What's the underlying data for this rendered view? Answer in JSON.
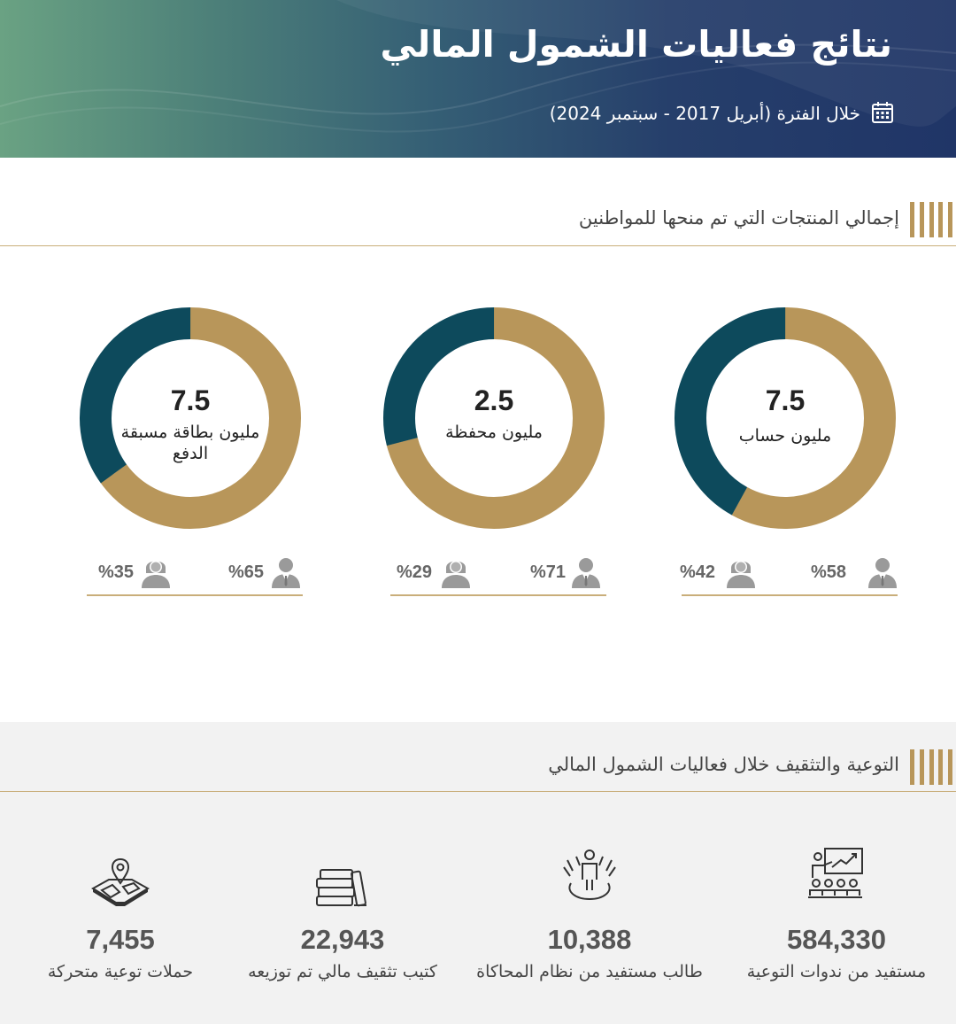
{
  "header": {
    "title": "نتائج فعاليات الشمول المالي",
    "period": "خلال الفترة (أبريل 2017 - سبتمبر 2024)",
    "icon": "calendar-icon"
  },
  "colors": {
    "gold": "#b8965a",
    "teal": "#0d4a5c",
    "rule": "#c9ae7a"
  },
  "products_section": {
    "title": "إجمالي المنتجات التي تم منحها للمواطنين"
  },
  "chart_data": [
    {
      "type": "pie",
      "value": "7.5",
      "label": "مليون حساب",
      "slices": [
        {
          "name": "male",
          "pct": 58,
          "label": "%58"
        },
        {
          "name": "female",
          "pct": 42,
          "label": "%42"
        }
      ]
    },
    {
      "type": "pie",
      "value": "2.5",
      "label": "مليون محفظة",
      "slices": [
        {
          "name": "male",
          "pct": 71,
          "label": "%71"
        },
        {
          "name": "female",
          "pct": 29,
          "label": "%29"
        }
      ]
    },
    {
      "type": "pie",
      "value": "7.5",
      "label": "مليون بطاقة مسبقة الدفع",
      "slices": [
        {
          "name": "male",
          "pct": 65,
          "label": "%65"
        },
        {
          "name": "female",
          "pct": 35,
          "label": "%35"
        }
      ]
    }
  ],
  "awareness_section": {
    "title": "التوعية والتثقيف خلال فعاليات الشمول المالي",
    "stats": [
      {
        "icon": "presentation-audience-icon",
        "value": "584,330",
        "label": "مستفيد من ندوات التوعية"
      },
      {
        "icon": "student-simulation-icon",
        "value": "10,388",
        "label": "طالب مستفيد من نظام المحاكاة"
      },
      {
        "icon": "books-icon",
        "value": "22,943",
        "label": "كتيب تثقيف مالي تم توزيعه"
      },
      {
        "icon": "map-pin-icon",
        "value": "7,455",
        "label": "حملات توعية متحركة"
      }
    ]
  }
}
